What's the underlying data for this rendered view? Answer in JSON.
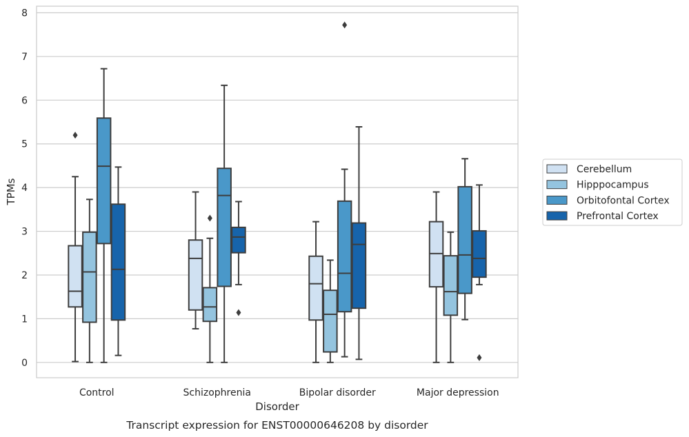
{
  "chart_data": {
    "type": "box",
    "caption": "Transcript expression for ENST00000646208 by disorder",
    "xlabel": "Disorder",
    "ylabel": "TPMs",
    "ylim": [
      -0.35,
      8.15
    ],
    "yticks": [
      0,
      1,
      2,
      3,
      4,
      5,
      6,
      7,
      8
    ],
    "grid": "horizontal",
    "legend_position": "right",
    "categories": [
      "Control",
      "Schizophrenia",
      "Bipolar disorder",
      "Major depression"
    ],
    "series": [
      {
        "name": "Cerebellum",
        "color": "#d0e1f2",
        "boxes": [
          {
            "whislo": 0.02,
            "q1": 1.27,
            "med": 1.63,
            "q3": 2.67,
            "whishi": 4.25,
            "fliers": [
              5.2
            ]
          },
          {
            "whislo": 0.77,
            "q1": 1.2,
            "med": 2.38,
            "q3": 2.8,
            "whishi": 3.9,
            "fliers": []
          },
          {
            "whislo": 0.0,
            "q1": 0.97,
            "med": 1.8,
            "q3": 2.43,
            "whishi": 3.22,
            "fliers": []
          },
          {
            "whislo": 0.0,
            "q1": 1.73,
            "med": 2.49,
            "q3": 3.22,
            "whishi": 3.9,
            "fliers": []
          }
        ]
      },
      {
        "name": "Hipppocampus",
        "color": "#94c4df",
        "boxes": [
          {
            "whislo": 0.0,
            "q1": 0.92,
            "med": 2.07,
            "q3": 2.98,
            "whishi": 3.73,
            "fliers": []
          },
          {
            "whislo": 0.0,
            "q1": 0.94,
            "med": 1.27,
            "q3": 1.71,
            "whishi": 2.84,
            "fliers": [
              3.3
            ]
          },
          {
            "whislo": 0.0,
            "q1": 0.24,
            "med": 1.1,
            "q3": 1.65,
            "whishi": 2.34,
            "fliers": []
          },
          {
            "whislo": 0.0,
            "q1": 1.08,
            "med": 1.62,
            "q3": 2.44,
            "whishi": 2.98,
            "fliers": []
          }
        ]
      },
      {
        "name": "Orbitofontal Cortex",
        "color": "#4a98c9",
        "boxes": [
          {
            "whislo": 0.0,
            "q1": 2.72,
            "med": 4.49,
            "q3": 5.59,
            "whishi": 6.72,
            "fliers": []
          },
          {
            "whislo": 0.0,
            "q1": 1.74,
            "med": 3.82,
            "q3": 4.44,
            "whishi": 6.34,
            "fliers": []
          },
          {
            "whislo": 0.13,
            "q1": 1.16,
            "med": 2.04,
            "q3": 3.69,
            "whishi": 4.42,
            "fliers": [
              7.72
            ]
          },
          {
            "whislo": 0.98,
            "q1": 1.58,
            "med": 2.46,
            "q3": 4.02,
            "whishi": 4.66,
            "fliers": []
          }
        ]
      },
      {
        "name": "Prefrontal Cortex",
        "color": "#1764ab",
        "boxes": [
          {
            "whislo": 0.16,
            "q1": 0.97,
            "med": 2.13,
            "q3": 3.62,
            "whishi": 4.47,
            "fliers": []
          },
          {
            "whislo": 1.78,
            "q1": 2.51,
            "med": 2.87,
            "q3": 3.09,
            "whishi": 3.68,
            "fliers": [
              1.14
            ]
          },
          {
            "whislo": 0.07,
            "q1": 1.24,
            "med": 2.7,
            "q3": 3.19,
            "whishi": 5.39,
            "fliers": []
          },
          {
            "whislo": 1.78,
            "q1": 1.95,
            "med": 2.38,
            "q3": 3.01,
            "whishi": 4.06,
            "fliers": [
              0.11
            ]
          }
        ]
      }
    ]
  }
}
